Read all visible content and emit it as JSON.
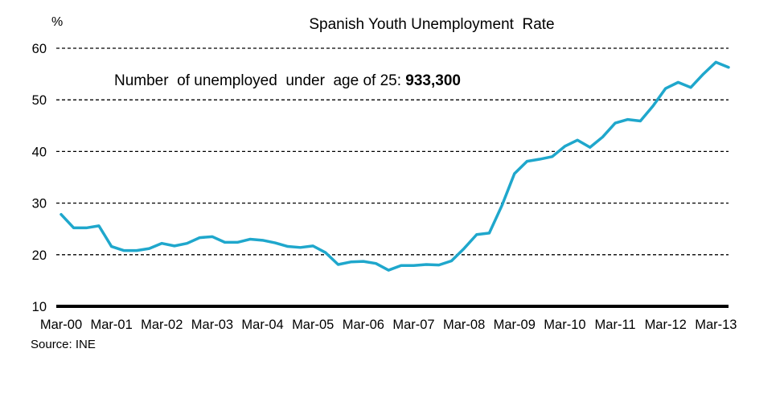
{
  "chart_data": {
    "type": "line",
    "title": "Spanish Youth Unemployment  Rate",
    "ylabel": "%",
    "xlabel": "",
    "ylim": [
      10,
      60
    ],
    "yticks": [
      10,
      20,
      30,
      40,
      50,
      60
    ],
    "grid": true,
    "x_tick_labels": [
      "Mar-00",
      "Mar-01",
      "Mar-02",
      "Mar-03",
      "Mar-04",
      "Mar-05",
      "Mar-06",
      "Mar-07",
      "Mar-08",
      "Mar-09",
      "Mar-10",
      "Mar-11",
      "Mar-12",
      "Mar-13"
    ],
    "annotation": {
      "text": "Number  of unemployed  under  age of 25: ",
      "value": "933,300"
    },
    "source": "Source: INE",
    "color": "#1fa7cc",
    "series": [
      {
        "values": [
          27.8,
          25.2,
          25.2,
          25.6,
          21.6,
          20.8,
          20.8,
          21.2,
          22.2,
          21.7,
          22.2,
          23.3,
          23.5,
          22.4,
          22.4,
          23.0,
          22.8,
          22.3,
          21.6,
          21.4,
          21.7,
          20.4,
          18.1,
          18.6,
          18.7,
          18.3,
          17.0,
          17.9,
          17.9,
          18.1,
          18.0,
          18.8,
          21.2,
          23.9,
          24.2,
          29.5,
          35.7,
          38.1,
          38.5,
          39.0,
          41.0,
          42.2,
          40.8,
          42.8,
          45.5,
          46.2,
          45.9,
          48.8,
          52.2,
          53.4,
          52.4,
          55.0,
          57.3,
          56.3
        ]
      }
    ]
  }
}
